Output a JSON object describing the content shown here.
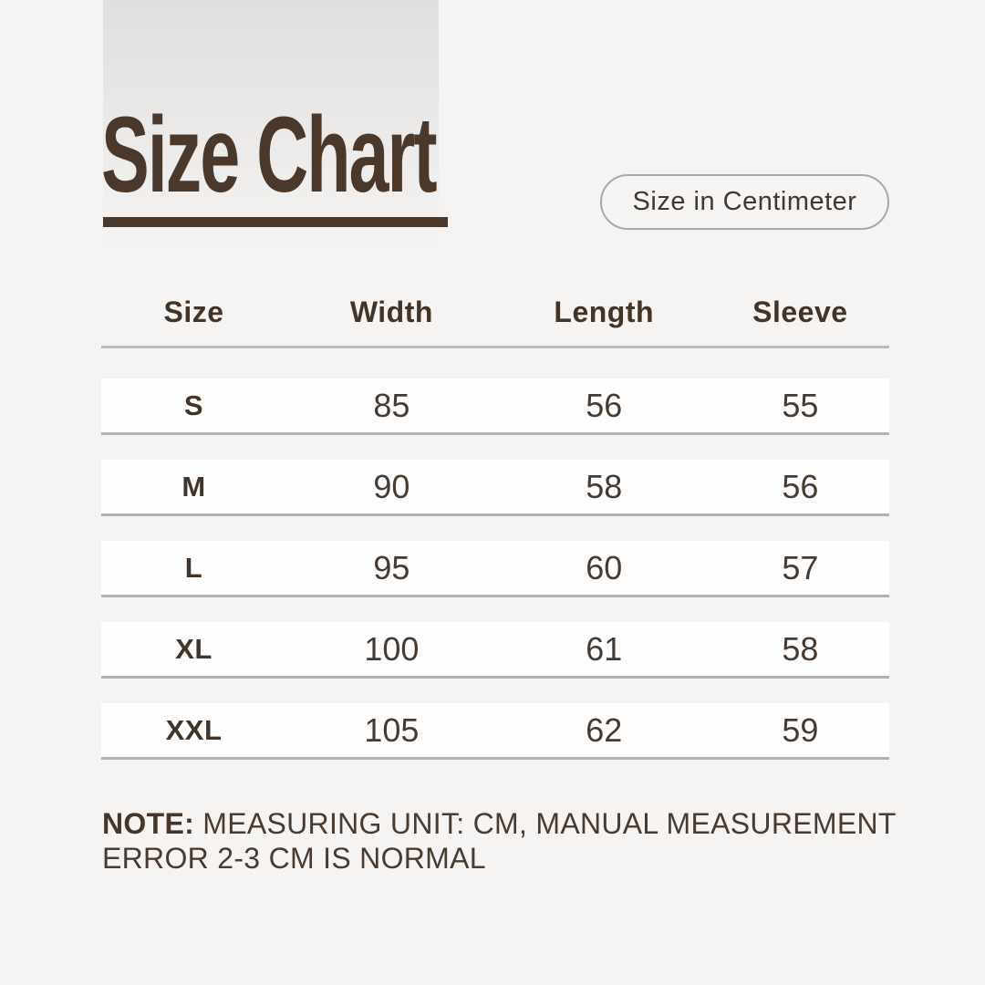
{
  "page": {
    "background_color": "#f5f4f2",
    "accent_color": "#4a392b"
  },
  "header": {
    "title": "Size Chart",
    "unit_badge": "Size in Centimeter"
  },
  "table": {
    "columns": [
      "Size",
      "Width",
      "Length",
      "Sleeve"
    ],
    "rows": [
      {
        "size": "S",
        "width": "85",
        "length": "56",
        "sleeve": "55"
      },
      {
        "size": "M",
        "width": "90",
        "length": "58",
        "sleeve": "56"
      },
      {
        "size": "L",
        "width": "95",
        "length": "60",
        "sleeve": "57"
      },
      {
        "size": "XL",
        "width": "100",
        "length": "61",
        "sleeve": "58"
      },
      {
        "size": "XXL",
        "width": "105",
        "length": "62",
        "sleeve": "59"
      }
    ]
  },
  "note": {
    "label": "NOTE:",
    "line1": "MEASURING UNIT: CM, MANUAL MEASUREMENT",
    "line2": "ERROR 2-3 CM IS NORMAL"
  },
  "chart_data": {
    "type": "table",
    "title": "Size Chart",
    "unit": "cm",
    "columns": [
      "Size",
      "Width",
      "Length",
      "Sleeve"
    ],
    "categories": [
      "S",
      "M",
      "L",
      "XL",
      "XXL"
    ],
    "series": [
      {
        "name": "Width",
        "values": [
          85,
          90,
          95,
          100,
          105
        ]
      },
      {
        "name": "Length",
        "values": [
          56,
          58,
          60,
          61,
          62
        ]
      },
      {
        "name": "Sleeve",
        "values": [
          55,
          56,
          57,
          58,
          59
        ]
      }
    ],
    "annotations": [
      "NOTE: MEASURING UNIT: CM, MANUAL MEASUREMENT ERROR 2-3 CM IS NORMAL"
    ]
  }
}
